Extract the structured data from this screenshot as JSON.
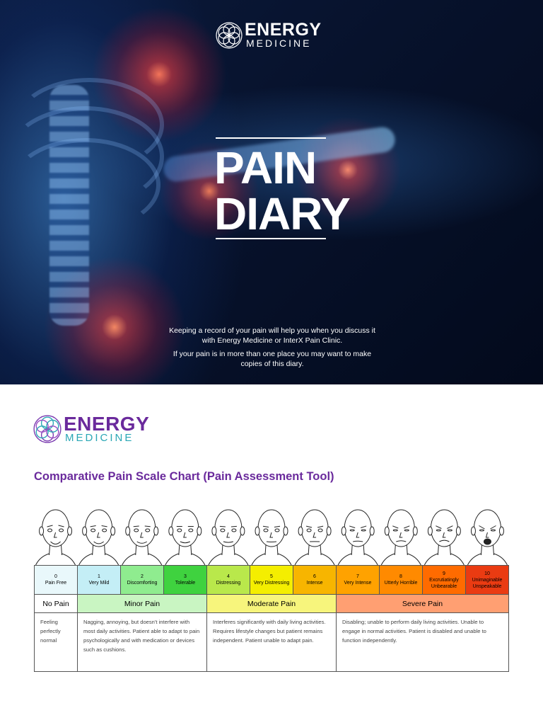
{
  "hero": {
    "logo": {
      "line1": "ENERGY",
      "line2": "MEDICINE"
    },
    "title": [
      "PAIN",
      "DIARY"
    ],
    "paragraphs": [
      "Keeping a record of your pain will help you when you discuss it with Energy Medicine or InterX Pain Clinic.",
      "If your pain is in more than one place you may want to make copies of this diary."
    ]
  },
  "section": {
    "logo": {
      "line1": "ENERGY",
      "line2": "MEDICINE"
    },
    "heading": "Comparative Pain Scale Chart (Pain Assessment Tool)",
    "scale": [
      {
        "number": 0,
        "label": "Pain Free"
      },
      {
        "number": 1,
        "label": "Very Mild"
      },
      {
        "number": 2,
        "label": "Discomforting"
      },
      {
        "number": 3,
        "label": "Tolerable"
      },
      {
        "number": 4,
        "label": "Distressing"
      },
      {
        "number": 5,
        "label": "Very Distressing"
      },
      {
        "number": 6,
        "label": "Intense"
      },
      {
        "number": 7,
        "label": "Very Intense"
      },
      {
        "number": 8,
        "label": "Utterly Horrible"
      },
      {
        "number": 9,
        "label": "Excrutiatingly Unbearable"
      },
      {
        "number": 10,
        "label": "Unimaginable Unspeakable"
      }
    ],
    "groups": [
      {
        "name": "No Pain",
        "description": "Feeling perfectly normal"
      },
      {
        "name": "Minor Pain",
        "description": "Nagging, annoying, but doesn't interfere with most daily activities. Patient able to adapt to pain psychologically and with medication or devices such as cushions."
      },
      {
        "name": "Moderate Pain",
        "description": "Interferes significantly with daily living activities. Requires lifestyle changes but patient remains independent. Patient unable to adapt pain."
      },
      {
        "name": "Severe Pain",
        "description": "Disabling; unable to perform daily living activities. Unable to engage in normal activities. Patient is disabled and unable to function independently."
      }
    ]
  }
}
